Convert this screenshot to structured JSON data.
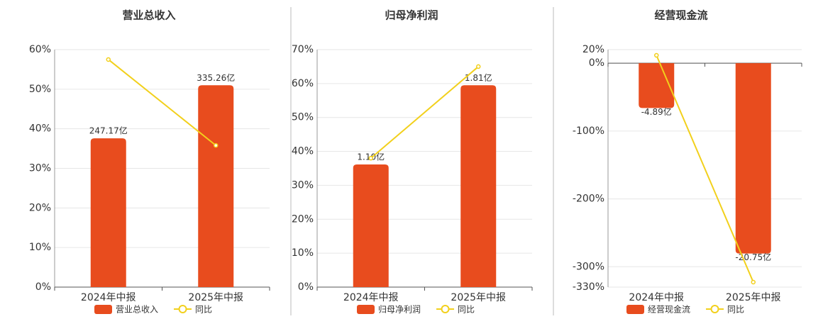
{
  "chart_data": [
    {
      "type": "bar",
      "title": "营业总收入",
      "categories": [
        "2024年中报",
        "2025年中报"
      ],
      "series": [
        {
          "name": "营业总收入",
          "color": "#e84c1e",
          "values": [
            247.17,
            335.26
          ],
          "value_labels": [
            "247.17亿",
            "335.26亿"
          ]
        },
        {
          "name": "同比",
          "type": "line",
          "color": "#f2d01c",
          "values": [
            57.5,
            35.8
          ]
        }
      ],
      "ylim": [
        0,
        60
      ],
      "yticks": [
        {
          "value": 0,
          "label": "0%"
        },
        {
          "value": 10,
          "label": "10%"
        },
        {
          "value": 20,
          "label": "20%"
        },
        {
          "value": 30,
          "label": "30%"
        },
        {
          "value": 40,
          "label": "40%"
        },
        {
          "value": 50,
          "label": "50%"
        },
        {
          "value": 60,
          "label": "60%"
        }
      ],
      "grid": true
    },
    {
      "type": "bar",
      "title": "归母净利润",
      "categories": [
        "2024年中报",
        "2025年中报"
      ],
      "series": [
        {
          "name": "归母净利润",
          "color": "#e84c1e",
          "values": [
            1.1,
            1.81
          ],
          "value_labels": [
            "1.10亿",
            "1.81亿"
          ]
        },
        {
          "name": "同比",
          "type": "line",
          "color": "#f2d01c",
          "values": [
            38.0,
            65.0
          ]
        }
      ],
      "ylim": [
        0,
        70
      ],
      "yticks": [
        {
          "value": 0,
          "label": "0%"
        },
        {
          "value": 10,
          "label": "10%"
        },
        {
          "value": 20,
          "label": "20%"
        },
        {
          "value": 30,
          "label": "30%"
        },
        {
          "value": 40,
          "label": "40%"
        },
        {
          "value": 50,
          "label": "50%"
        },
        {
          "value": 60,
          "label": "60%"
        },
        {
          "value": 70,
          "label": "70%"
        }
      ],
      "grid": true
    },
    {
      "type": "bar",
      "title": "经营现金流",
      "categories": [
        "2024年中报",
        "2025年中报"
      ],
      "series": [
        {
          "name": "经营现金流",
          "color": "#e84c1e",
          "values": [
            -4.89,
            -20.75
          ],
          "value_labels": [
            "-4.89亿",
            "-20.75亿"
          ]
        },
        {
          "name": "同比",
          "type": "line",
          "color": "#f2d01c",
          "values": [
            11.6,
            -322.7
          ]
        }
      ],
      "ylim": [
        -330,
        20
      ],
      "yticks": [
        {
          "value": 20,
          "label": "20%"
        },
        {
          "value": 0,
          "label": "0%"
        },
        {
          "value": -100,
          "label": "-100%"
        },
        {
          "value": -200,
          "label": "-200%"
        },
        {
          "value": -300,
          "label": "-300%"
        },
        {
          "value": -330,
          "label": "-330%"
        }
      ],
      "grid": true
    }
  ]
}
